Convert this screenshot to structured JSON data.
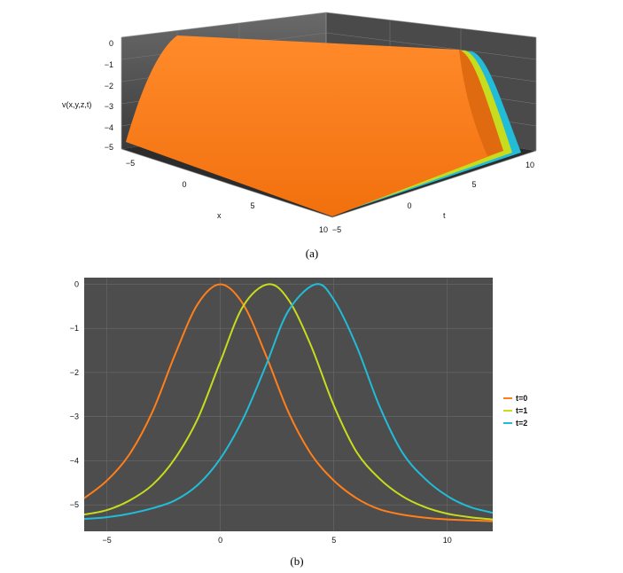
{
  "chart_data": [
    {
      "type": "surface3d",
      "caption": "(a)",
      "zlabel": "v(x,y,z,t)",
      "xlabel": "x",
      "tlabel": "t",
      "z_ticks": [
        "0",
        "−1",
        "−2",
        "−3",
        "−4",
        "−5"
      ],
      "x_ticks": [
        "−5",
        "0",
        "5",
        "10"
      ],
      "t_ticks": [
        "−5",
        "0",
        "5",
        "10"
      ],
      "xlim": [
        -5,
        10
      ],
      "tlim": [
        -5,
        10
      ],
      "zlim": [
        -5.4,
        0
      ],
      "grid": true,
      "colors": [
        "#ff7f1a",
        "#c8dc1e",
        "#22bcd8"
      ]
    },
    {
      "type": "line",
      "caption": "(b)",
      "x_ticks": [
        "−5",
        "0",
        "5",
        "10"
      ],
      "y_ticks": [
        "0",
        "−1",
        "−2",
        "−3",
        "−4",
        "−5"
      ],
      "xlim": [
        -6,
        12
      ],
      "ylim": [
        -5.6,
        0.15
      ],
      "grid": true,
      "legend_position": "right",
      "series": [
        {
          "name": "t=0",
          "color": "#ff7f1a",
          "x": [
            -6,
            -5,
            -4,
            -3,
            -2,
            -1,
            0,
            1,
            2,
            3,
            4,
            5,
            6,
            7,
            8,
            9,
            10,
            11,
            12
          ],
          "y": [
            -4.85,
            -4.45,
            -3.85,
            -2.9,
            -1.6,
            -0.45,
            0,
            -0.45,
            -1.6,
            -2.9,
            -3.85,
            -4.45,
            -4.85,
            -5.1,
            -5.22,
            -5.29,
            -5.33,
            -5.35,
            -5.37
          ]
        },
        {
          "name": "t=1",
          "color": "#c8dc1e",
          "x": [
            -6,
            -5,
            -4,
            -3,
            -2,
            -1,
            0,
            1,
            2.1,
            3,
            4,
            5,
            6,
            7,
            8,
            9,
            10,
            11,
            12
          ],
          "y": [
            -5.22,
            -5.12,
            -4.9,
            -4.55,
            -3.95,
            -3.05,
            -1.75,
            -0.5,
            0,
            -0.35,
            -1.4,
            -2.75,
            -3.8,
            -4.4,
            -4.8,
            -5.05,
            -5.2,
            -5.28,
            -5.33
          ]
        },
        {
          "name": "t=2",
          "color": "#22bcd8",
          "x": [
            -6,
            -5,
            -4,
            -3,
            -2,
            -1,
            0,
            1,
            2,
            3,
            4.2,
            5,
            6,
            7,
            8,
            9,
            10,
            11,
            12
          ],
          "y": [
            -5.32,
            -5.28,
            -5.2,
            -5.08,
            -4.9,
            -4.55,
            -3.95,
            -3.05,
            -1.85,
            -0.6,
            0,
            -0.35,
            -1.4,
            -2.75,
            -3.8,
            -4.4,
            -4.8,
            -5.05,
            -5.18
          ]
        }
      ]
    }
  ]
}
